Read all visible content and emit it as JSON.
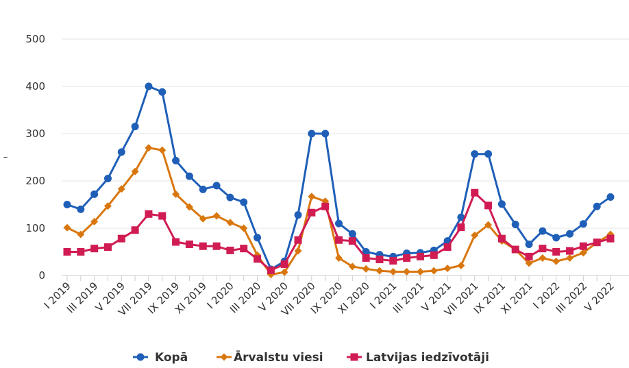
{
  "chart_data": {
    "type": "line",
    "title": "",
    "xlabel": "",
    "ylabel": "–",
    "ylim": [
      0,
      500
    ],
    "yticks": [
      "0",
      "100",
      "200",
      "300",
      "400",
      "500"
    ],
    "grid": true,
    "legend_position": "bottom",
    "categories": [
      "I 2019",
      "II 2019",
      "III 2019",
      "IV 2019",
      "V 2019",
      "VI 2019",
      "VII 2019",
      "VIII 2019",
      "IX 2019",
      "X 2019",
      "XI 2019",
      "XII 2019",
      "I 2020",
      "II 2020",
      "III 2020",
      "IV 2020",
      "V 2020",
      "VI 2020",
      "VII 2020",
      "VIII 2020",
      "IX 2020",
      "X 2020",
      "XI 2020",
      "XII 2020",
      "I 2021",
      "II 2021",
      "III 2021",
      "IV 2021",
      "V 2021",
      "VI 2021",
      "VII 2021",
      "VIII 2021",
      "IX 2021",
      "X 2021",
      "XI 2021",
      "XII 2021",
      "I 2022",
      "II 2022",
      "III 2022",
      "IV 2022",
      "V 2022"
    ],
    "shown_tick_labels": [
      "I 2019",
      "III 2019",
      "V 2019",
      "VII 2019",
      "IX 2019",
      "XI 2019",
      "I 2020",
      "III 2020",
      "V 2020",
      "VII 2020",
      "IX 2020",
      "XI 2020",
      "I 2021",
      "III 2021",
      "V 2021",
      "VII 2021",
      "IX 2021",
      "XI 2021",
      "I 2022",
      "III 2022",
      "V 2022"
    ],
    "series": [
      {
        "name": "Kopā",
        "color": "#1f5fb8",
        "marker": "circle",
        "values": [
          150,
          140,
          172,
          205,
          261,
          315,
          400,
          388,
          243,
          210,
          182,
          190,
          165,
          155,
          80,
          13,
          30,
          128,
          300,
          300,
          110,
          88,
          50,
          44,
          40,
          47,
          48,
          53,
          73,
          123,
          257,
          257,
          151,
          108,
          66,
          94,
          80,
          88,
          109,
          146,
          166
        ]
      },
      {
        "name": "Ārvalstu viesi",
        "color": "#d9770f",
        "marker": "diamond",
        "values": [
          101,
          87,
          114,
          147,
          183,
          220,
          270,
          265,
          172,
          145,
          120,
          126,
          112,
          100,
          43,
          2,
          7,
          52,
          167,
          157,
          37,
          19,
          14,
          10,
          8,
          8,
          8,
          10,
          15,
          21,
          85,
          107,
          73,
          55,
          26,
          37,
          30,
          37,
          48,
          70,
          87
        ]
      },
      {
        "name": "Latvijas iedzīvotāji",
        "color": "#d01c52",
        "marker": "square",
        "values": [
          50,
          50,
          57,
          60,
          78,
          96,
          130,
          126,
          71,
          66,
          62,
          62,
          53,
          57,
          35,
          11,
          24,
          75,
          133,
          146,
          75,
          73,
          37,
          34,
          31,
          37,
          40,
          43,
          60,
          102,
          175,
          148,
          78,
          55,
          40,
          57,
          50,
          52,
          62,
          70,
          78
        ]
      }
    ]
  }
}
